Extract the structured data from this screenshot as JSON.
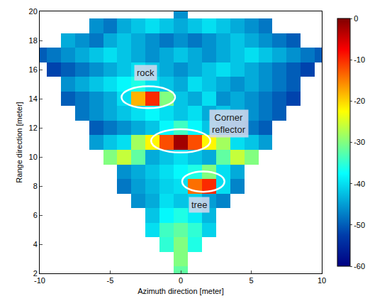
{
  "chart_data": {
    "type": "heatmap",
    "x_label": "Azimuth direction [meter]",
    "y_label": "Range direction [meter]",
    "xlim": [
      -10,
      10
    ],
    "xticks": [
      -10,
      -5,
      0,
      5,
      10
    ],
    "ylim": [
      2,
      20
    ],
    "yticks": [
      2,
      4,
      6,
      8,
      10,
      12,
      14,
      16,
      18,
      20
    ],
    "grid": false,
    "color": "jet",
    "x": [
      -10,
      -9,
      -8,
      -7,
      -6,
      -5,
      -4,
      -3,
      -2,
      -1,
      0,
      1,
      2,
      3,
      4,
      5,
      6,
      7,
      8,
      9,
      10
    ],
    "y": [
      2,
      3,
      4,
      5,
      6,
      7,
      8,
      9,
      10,
      11,
      12,
      13,
      14,
      15,
      16,
      17,
      18,
      19,
      20
    ],
    "cells": [
      [
        null,
        null,
        null,
        null,
        null,
        null,
        null,
        null,
        null,
        null,
        -32,
        null,
        null,
        null,
        null,
        null,
        null,
        null,
        null,
        null,
        null
      ],
      [
        null,
        null,
        null,
        null,
        null,
        null,
        null,
        null,
        null,
        null,
        -30,
        null,
        null,
        null,
        null,
        null,
        null,
        null,
        null,
        null,
        null
      ],
      [
        null,
        null,
        null,
        null,
        null,
        null,
        null,
        null,
        null,
        -35,
        -30,
        -36,
        null,
        null,
        null,
        null,
        null,
        null,
        null,
        null,
        null
      ],
      [
        null,
        null,
        null,
        null,
        null,
        null,
        null,
        null,
        -40,
        -34,
        -32,
        -35,
        -41,
        null,
        null,
        null,
        null,
        null,
        null,
        null,
        null
      ],
      [
        null,
        null,
        null,
        null,
        null,
        null,
        null,
        null,
        -42,
        -38,
        -36,
        -39,
        -43,
        null,
        null,
        null,
        null,
        null,
        null,
        null,
        null
      ],
      [
        null,
        null,
        null,
        null,
        null,
        null,
        null,
        -46,
        -44,
        -40,
        -42,
        -41,
        -45,
        -47,
        null,
        null,
        null,
        null,
        null,
        null,
        null
      ],
      [
        null,
        null,
        null,
        null,
        null,
        null,
        -48,
        -45,
        -43,
        -41,
        -40,
        -14,
        -10,
        -40,
        -47,
        null,
        null,
        null,
        null,
        null,
        null
      ],
      [
        null,
        null,
        null,
        null,
        null,
        null,
        -46,
        -44,
        -42,
        -40,
        -38,
        -36,
        -30,
        -40,
        -44,
        null,
        null,
        null,
        null,
        null,
        null
      ],
      [
        null,
        null,
        null,
        null,
        null,
        -30,
        -26,
        -32,
        -44,
        -42,
        -40,
        -42,
        -44,
        -32,
        -26,
        -30,
        null,
        null,
        null,
        null,
        null
      ],
      [
        null,
        null,
        null,
        null,
        -45,
        -42,
        -40,
        -28,
        -22,
        -12,
        -2,
        -12,
        -22,
        -28,
        -40,
        -42,
        -45,
        null,
        null,
        null,
        null
      ],
      [
        null,
        null,
        null,
        null,
        -50,
        -48,
        -46,
        -44,
        -42,
        -38,
        -34,
        -38,
        -42,
        -44,
        -46,
        -48,
        -50,
        null,
        null,
        null,
        null
      ],
      [
        null,
        null,
        null,
        -48,
        -46,
        -44,
        -42,
        -40,
        -38,
        -40,
        -42,
        -40,
        -44,
        -42,
        -44,
        -46,
        -48,
        -50,
        null,
        null,
        null
      ],
      [
        null,
        null,
        -50,
        -48,
        -46,
        -44,
        -40,
        -18,
        -10,
        -30,
        -42,
        -44,
        -40,
        -46,
        -44,
        -46,
        -48,
        -50,
        -52,
        null,
        null
      ],
      [
        null,
        null,
        -46,
        -44,
        -42,
        -40,
        -38,
        -36,
        -40,
        -42,
        -44,
        -40,
        -42,
        -44,
        -46,
        -44,
        -46,
        -48,
        -50,
        null,
        null
      ],
      [
        null,
        -52,
        -50,
        -48,
        -46,
        -44,
        -42,
        -40,
        -42,
        -44,
        -46,
        -44,
        -42,
        -40,
        -42,
        -44,
        -46,
        -48,
        -50,
        -52,
        null
      ],
      [
        -50,
        -48,
        -46,
        -44,
        -42,
        -40,
        -42,
        -44,
        -46,
        -44,
        -42,
        -44,
        -46,
        -44,
        -42,
        -40,
        -42,
        -44,
        -46,
        -48,
        -50
      ],
      [
        null,
        null,
        -44,
        -46,
        -48,
        -44,
        -42,
        -44,
        -46,
        -48,
        -46,
        -48,
        -46,
        -44,
        -42,
        -44,
        -46,
        -48,
        -50,
        null,
        null
      ],
      [
        null,
        null,
        null,
        null,
        -46,
        -48,
        -44,
        -42,
        -40,
        -42,
        -44,
        -42,
        -40,
        -42,
        -44,
        -46,
        -48,
        null,
        null,
        null,
        null
      ],
      [
        null,
        null,
        null,
        null,
        null,
        null,
        null,
        null,
        null,
        null,
        -46,
        null,
        null,
        null,
        null,
        null,
        null,
        null,
        null,
        null,
        null
      ]
    ],
    "colorbar": {
      "range": [
        -60,
        0
      ],
      "ticks": [
        0,
        -10,
        -20,
        -30,
        -40,
        -50,
        -60
      ]
    },
    "annotations": [
      {
        "text": "rock",
        "x": -2.3,
        "y": 14.1
      },
      {
        "text": "Corner reflector",
        "x": 0,
        "y": 11.1
      },
      {
        "text": "tree",
        "x": 1.6,
        "y": 8.3
      }
    ]
  }
}
